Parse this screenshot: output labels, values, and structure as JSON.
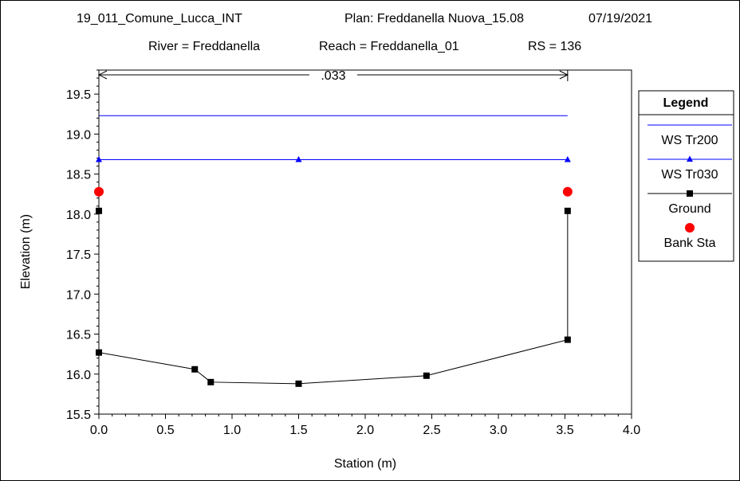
{
  "chart_data": {
    "type": "line",
    "title_line1": {
      "project": "19_011_Comune_Lucca_INT",
      "plan": "Plan: Freddanella Nuova_15.08",
      "date": "07/19/2021"
    },
    "title_line2": {
      "river": "River = Freddanella",
      "reach": "Reach = Freddanella_01",
      "rs": "RS = 136"
    },
    "xlabel": "Station (m)",
    "ylabel": "Elevation (m)",
    "xlim": [
      0,
      4.0
    ],
    "ylim": [
      15.5,
      19.8
    ],
    "xticks": [
      "0.0",
      "0.5",
      "1.0",
      "1.5",
      "2.0",
      "2.5",
      "3.0",
      "3.5",
      "4.0"
    ],
    "yticks": [
      "15.5",
      "16.0",
      "16.5",
      "17.0",
      "17.5",
      "18.0",
      "18.5",
      "19.0",
      "19.5"
    ],
    "manning": {
      "label": ".033",
      "x_start": 0.0,
      "x_end": 3.52
    },
    "legend": {
      "title": "Legend",
      "entries": [
        "WS Tr200",
        "WS Tr030",
        "Ground",
        "Bank Sta"
      ]
    },
    "series": [
      {
        "name": "WS Tr200",
        "color": "#0000ff",
        "marker": "none",
        "x": [
          0.0,
          3.52
        ],
        "y": [
          19.23,
          19.23
        ]
      },
      {
        "name": "WS Tr030",
        "color": "#0000ff",
        "marker": "triangle",
        "x": [
          0.0,
          1.5,
          3.52
        ],
        "y": [
          18.68,
          18.68,
          18.68
        ]
      },
      {
        "name": "Ground",
        "color": "#000000",
        "marker": "square",
        "x": [
          0.0,
          0.0,
          0.72,
          0.84,
          1.5,
          2.46,
          3.52,
          3.52
        ],
        "y": [
          18.04,
          16.27,
          16.06,
          15.9,
          15.88,
          15.98,
          16.43,
          18.04
        ]
      },
      {
        "name": "Bank Sta",
        "color": "#ff0000",
        "marker": "circle",
        "x": [
          0.0,
          3.52
        ],
        "y": [
          18.28,
          18.28
        ]
      }
    ]
  }
}
